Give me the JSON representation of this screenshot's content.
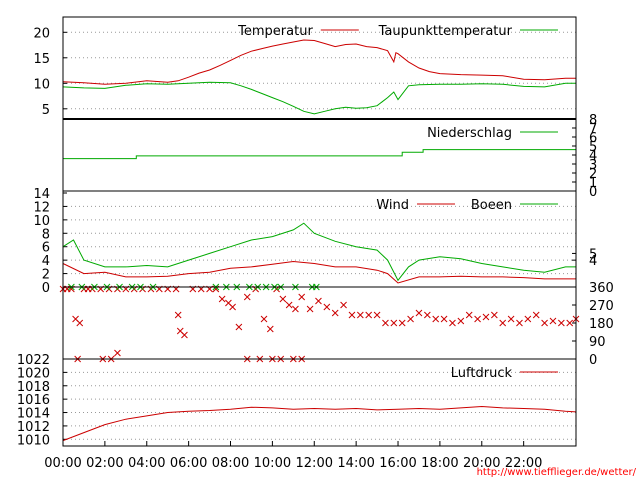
{
  "page": {
    "credit": "http://www.tiefflieger.de/wetter/"
  },
  "colors": {
    "red": "#cc0000",
    "green": "#00aa00",
    "grid": "#999999",
    "frame": "#000000",
    "credit": "#ff0000"
  },
  "time_axis": {
    "labels": [
      "00:00",
      "02:00",
      "04:00",
      "06:00",
      "08:00",
      "10:00",
      "12:00",
      "14:00",
      "16:00",
      "18:00",
      "20:00",
      "22:00"
    ],
    "start_hour": 0,
    "end_hour": 24.5
  },
  "chart_data": [
    {
      "id": "temperature",
      "type": "line",
      "legend": [
        "Temperatur",
        "Taupunkttemperatur"
      ],
      "y_ticks": [
        5,
        10,
        15,
        20
      ],
      "ylim": [
        3,
        23
      ],
      "grid": true,
      "series": [
        {
          "name": "Temperatur",
          "color": "red",
          "x": [
            0,
            1,
            2,
            3,
            4,
            5,
            5.5,
            6,
            6.5,
            7,
            7.5,
            8,
            8.5,
            9,
            9.5,
            10,
            10.5,
            11,
            11.5,
            12,
            12.5,
            13,
            13.5,
            14,
            14.5,
            15,
            15.5,
            15.8,
            15.9,
            16,
            16.5,
            17,
            17.5,
            18,
            18.5,
            19,
            20,
            21,
            22,
            23,
            24,
            24.5
          ],
          "y": [
            10.3,
            10.1,
            9.8,
            10,
            10.5,
            10.2,
            10.5,
            11.2,
            12,
            12.6,
            13.5,
            14.5,
            15.5,
            16.3,
            16.8,
            17.3,
            17.7,
            18.1,
            18.5,
            18.4,
            17.8,
            17.2,
            17.6,
            17.7,
            17.2,
            17,
            16.4,
            14.2,
            16,
            15.8,
            14.2,
            13,
            12.3,
            11.9,
            11.8,
            11.7,
            11.6,
            11.5,
            10.8,
            10.7,
            11,
            11
          ]
        },
        {
          "name": "Taupunkttemperatur",
          "color": "green",
          "x": [
            0,
            1,
            2,
            3,
            4,
            5,
            6,
            7,
            8,
            8.5,
            9,
            9.5,
            10,
            10.5,
            11,
            11.5,
            12,
            12.5,
            13,
            13.5,
            14,
            14.5,
            15,
            15.5,
            15.8,
            16,
            16.5,
            17,
            18,
            19,
            20,
            21,
            22,
            23,
            24,
            24.5
          ],
          "y": [
            9.3,
            9.1,
            9,
            9.6,
            9.9,
            9.8,
            10,
            10.2,
            10.1,
            9.5,
            8.8,
            8,
            7.2,
            6.4,
            5.5,
            4.5,
            4,
            4.5,
            5,
            5.3,
            5.1,
            5.2,
            5.6,
            7.2,
            8.3,
            6.8,
            9.5,
            9.7,
            9.8,
            9.8,
            9.9,
            9.8,
            9.4,
            9.3,
            10,
            10
          ]
        }
      ]
    },
    {
      "id": "precipitation",
      "type": "line",
      "legend": [
        "Niederschlag"
      ],
      "y_ticks_right": [
        0,
        1,
        2,
        3,
        4,
        5,
        6,
        7,
        8
      ],
      "ylim": [
        0,
        8
      ],
      "series": [
        {
          "name": "Niederschlag",
          "color": "green",
          "x": [
            0,
            3.5,
            3.5,
            16.2,
            16.2,
            17.2,
            17.2,
            24.5
          ],
          "y": [
            3.6,
            3.6,
            3.9,
            3.9,
            4.3,
            4.3,
            4.6,
            4.6
          ]
        }
      ]
    },
    {
      "id": "wind",
      "type": "line",
      "legend": [
        "Wind",
        "Boeen"
      ],
      "y_ticks_left": [
        0,
        2,
        4,
        6,
        8,
        10,
        12,
        14
      ],
      "y_ticks_right": [
        4,
        5
      ],
      "ylim": [
        0,
        14
      ],
      "grid": true,
      "series": [
        {
          "name": "Wind",
          "color": "red",
          "x": [
            0,
            1,
            2,
            3,
            4,
            5,
            6,
            7,
            8,
            9,
            10,
            11,
            12,
            13,
            14,
            15,
            15.5,
            16,
            17,
            18,
            19,
            20,
            21,
            22,
            23,
            24,
            24.5
          ],
          "y": [
            3.5,
            2,
            2.2,
            1.5,
            1.5,
            1.6,
            2,
            2.2,
            2.8,
            3,
            3.4,
            3.8,
            3.5,
            3,
            3,
            2.5,
            2,
            0.6,
            1.5,
            1.5,
            1.6,
            1.5,
            1.5,
            1.4,
            1.2,
            1.2,
            1.2
          ]
        },
        {
          "name": "Boeen",
          "color": "green",
          "x": [
            0,
            0.5,
            1,
            2,
            3,
            4,
            5,
            6,
            7,
            8,
            9,
            10,
            11,
            11.5,
            12,
            13,
            14,
            15,
            15.5,
            16,
            16.5,
            17,
            18,
            19,
            20,
            21,
            22,
            23,
            24,
            24.5
          ],
          "y": [
            6,
            7,
            4,
            3,
            3,
            3.2,
            3,
            4,
            5,
            6,
            7,
            7.5,
            8.5,
            9.5,
            8,
            6.8,
            6,
            5.5,
            4,
            1,
            3,
            4,
            4.5,
            4.2,
            3.5,
            3,
            2.5,
            2.2,
            3,
            3
          ]
        }
      ]
    },
    {
      "id": "wind_direction",
      "type": "scatter",
      "y_ticks_right": [
        0,
        90,
        180,
        270,
        360
      ],
      "ylim": [
        0,
        360
      ],
      "series": [
        {
          "name": "Wind",
          "color": "red",
          "x": [
            0,
            0.2,
            0.4,
            0.6,
            0.8,
            1,
            1.2,
            1.4,
            1.8,
            2.2,
            2.6,
            3,
            3.4,
            3.8,
            4.2,
            4.6,
            5,
            5.4,
            5.5,
            5.6,
            5.8,
            6.2,
            6.6,
            7,
            7.3,
            7.6,
            7.9,
            8.1,
            8.4,
            8.8,
            9.2,
            9.6,
            9.9,
            10.2,
            10.5,
            10.8,
            11.1,
            11.4,
            11.8,
            12.2,
            12.6,
            13,
            13.4,
            13.8,
            14.2,
            14.6,
            15,
            15.4,
            15.8,
            16.2,
            16.6,
            17,
            17.4,
            17.8,
            18.2,
            18.6,
            19,
            19.4,
            19.8,
            20.2,
            20.6,
            21,
            21.4,
            21.8,
            22.2,
            22.6,
            23,
            23.4,
            23.8,
            24.2,
            24.5,
            0.7,
            1.9,
            2.3,
            2.6,
            8.8,
            9.4,
            10,
            10.4,
            11,
            11.4
          ],
          "y": [
            350,
            350,
            350,
            200,
            180,
            350,
            350,
            350,
            350,
            350,
            350,
            350,
            350,
            350,
            350,
            350,
            350,
            350,
            220,
            140,
            120,
            350,
            350,
            350,
            350,
            300,
            280,
            260,
            160,
            310,
            350,
            200,
            150,
            350,
            300,
            270,
            250,
            310,
            250,
            290,
            260,
            230,
            270,
            220,
            220,
            220,
            220,
            180,
            180,
            180,
            200,
            230,
            220,
            200,
            200,
            180,
            190,
            220,
            200,
            210,
            220,
            180,
            200,
            180,
            200,
            220,
            180,
            190,
            180,
            180,
            200,
            0,
            0,
            0,
            30,
            0,
            0,
            0,
            0,
            0,
            0
          ]
        },
        {
          "name": "Boeen",
          "color": "green",
          "x": [
            0.4,
            0.9,
            1.5,
            2.1,
            2.7,
            3.3,
            3.7,
            4.3,
            7.3,
            7.8,
            8.3,
            8.9,
            9.3,
            9.7,
            10.1,
            10.4,
            11.1,
            11.9,
            12.1
          ],
          "y": [
            360,
            360,
            360,
            360,
            360,
            360,
            360,
            360,
            360,
            360,
            360,
            360,
            360,
            360,
            360,
            360,
            360,
            360,
            360
          ]
        }
      ]
    },
    {
      "id": "pressure",
      "type": "line",
      "legend": [
        "Luftdruck"
      ],
      "y_ticks": [
        1010,
        1012,
        1014,
        1016,
        1018,
        1020,
        1022
      ],
      "ylim": [
        1009,
        1022
      ],
      "grid": true,
      "series": [
        {
          "name": "Luftdruck",
          "color": "red",
          "x": [
            0,
            1,
            2,
            3,
            4,
            5,
            6,
            7,
            8,
            9,
            10,
            11,
            12,
            13,
            14,
            15,
            16,
            17,
            18,
            19,
            20,
            21,
            22,
            23,
            24,
            24.5
          ],
          "y": [
            1009.8,
            1011,
            1012.2,
            1013,
            1013.5,
            1014,
            1014.2,
            1014.3,
            1014.5,
            1014.8,
            1014.7,
            1014.5,
            1014.6,
            1014.5,
            1014.6,
            1014.4,
            1014.5,
            1014.6,
            1014.5,
            1014.7,
            1014.9,
            1014.7,
            1014.6,
            1014.5,
            1014.2,
            1014.1
          ]
        }
      ]
    }
  ]
}
